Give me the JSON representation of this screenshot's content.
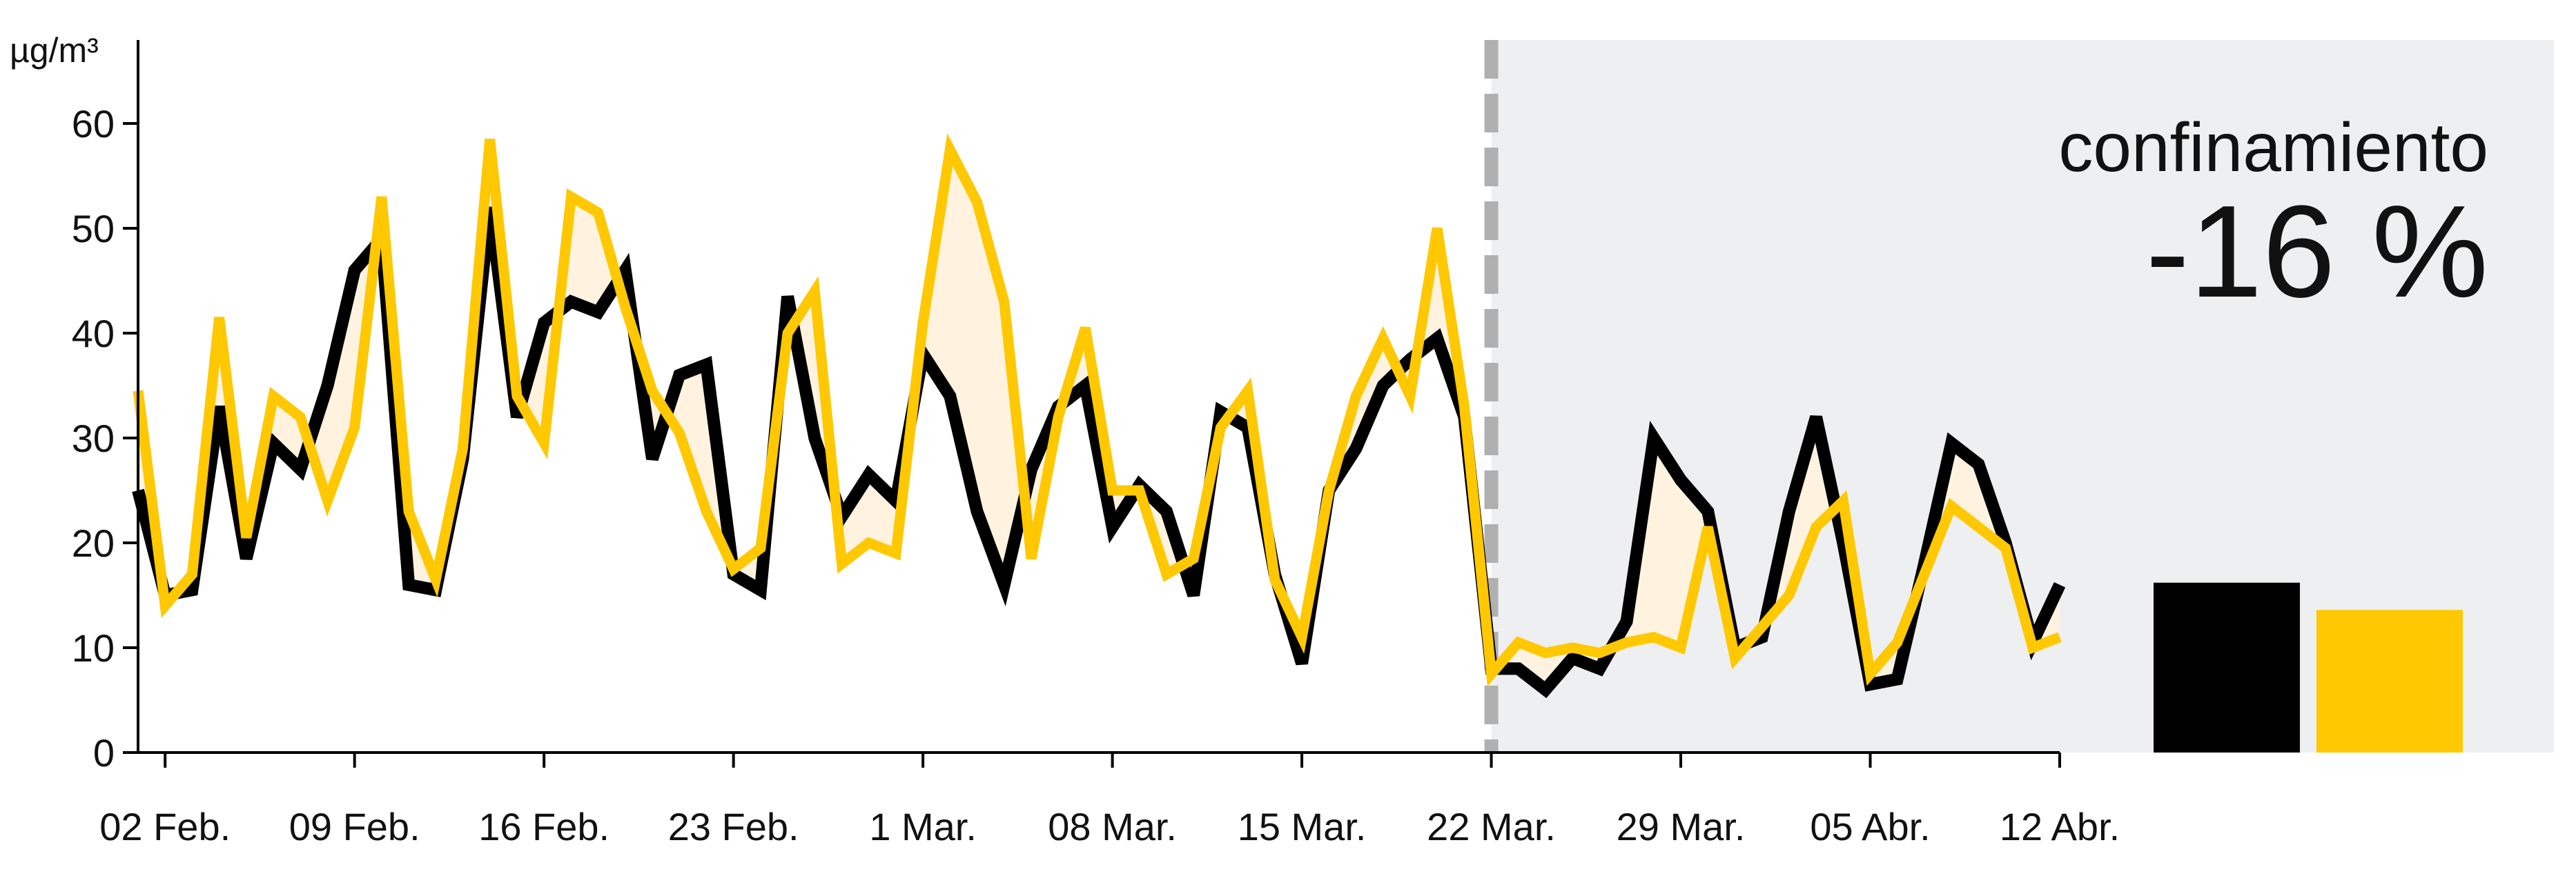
{
  "chart_data": {
    "type": "line",
    "unit_label": "µg/m³",
    "x_tick_labels": [
      "02 Feb.",
      "09 Feb.",
      "16 Feb.",
      "23 Feb.",
      "1 Mar.",
      "08 Mar.",
      "15 Mar.",
      "22 Mar.",
      "29 Mar.",
      "05 Abr.",
      "12 Abr."
    ],
    "ylim": [
      0,
      65
    ],
    "yticks": [
      0,
      10,
      20,
      30,
      40,
      50,
      60
    ],
    "x_range": [
      "2020-02-01",
      "2020-04-12"
    ],
    "start_date": "2020-02-01",
    "lockdown_start": "2020-03-22",
    "series": [
      {
        "color": "#000000",
        "values": [
          25,
          15,
          15.5,
          33,
          18.5,
          29.5,
          27,
          35,
          46,
          49,
          16,
          15.5,
          28,
          52,
          32,
          41,
          43,
          42,
          46,
          28,
          36,
          37,
          17,
          15.5,
          43.5,
          30,
          22.5,
          26.5,
          24,
          38,
          34,
          23,
          16,
          27,
          33,
          35,
          21.5,
          25.5,
          23,
          15,
          32.5,
          31,
          17,
          8.5,
          25,
          29,
          35,
          37.5,
          39.5,
          32,
          8,
          8,
          6,
          9,
          8,
          12.5,
          30,
          26,
          23,
          10,
          11,
          23,
          32,
          20,
          6.5,
          7,
          18,
          29.5,
          27.5,
          20,
          10.5,
          16
        ]
      },
      {
        "color": "#FFC800",
        "values": [
          34.5,
          14,
          17,
          41.5,
          20.5,
          34,
          32,
          24,
          31,
          53,
          23,
          16.5,
          29,
          58.5,
          34,
          29.5,
          53,
          51.5,
          42.5,
          34.5,
          30.5,
          23,
          17.5,
          19.5,
          40,
          44,
          18,
          20,
          19,
          41,
          57.5,
          52.5,
          43,
          18.5,
          32,
          40.5,
          25,
          25,
          17,
          18.5,
          31,
          34.5,
          16.5,
          11,
          25,
          34,
          39.5,
          34,
          50,
          33,
          7.5,
          10.5,
          9.5,
          10,
          9.5,
          10.5,
          11,
          10,
          21.5,
          9,
          12,
          15,
          21.5,
          24,
          7.5,
          10.5,
          17,
          23.5,
          21.5,
          19.5,
          10,
          11
        ]
      }
    ],
    "summary_bars": [
      {
        "color": "#000000",
        "value": 16.2
      },
      {
        "color": "#FFC800",
        "value": 13.6
      }
    ],
    "grid": false,
    "legend": "none"
  },
  "annotation": {
    "label": "confinamiento",
    "value": "-16 %"
  },
  "colors": {
    "series_black": "#000000",
    "series_yellow": "#FFC800",
    "fill_between": "#FFF3E0",
    "lockdown_background": "#EEEFF0",
    "lockdown_line": "#B0B0B0"
  }
}
